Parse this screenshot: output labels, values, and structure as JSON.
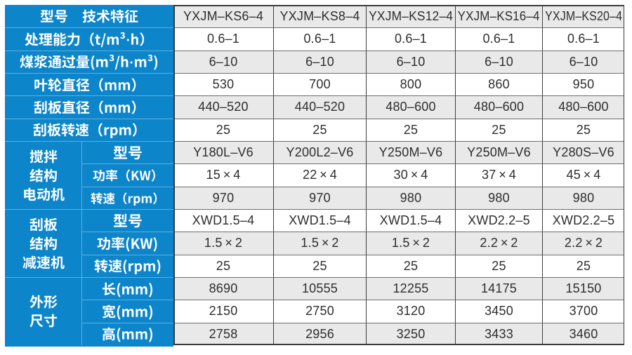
{
  "colors": {
    "header_blue": "#0c85ca",
    "blue_divider": "#5fb0de",
    "row_stripe_gray": "#e9e9e9",
    "row_white": "#ffffff",
    "grid_line_dark": "#3d3d3d",
    "grid_line_mid": "#6e6e6e",
    "text_dark": "#2e2e2e",
    "text_white": "#ffffff"
  },
  "table": {
    "corner_label": "型号　技术特征",
    "models": [
      "YXJM–KS6–4",
      "YXJM–KS8–4",
      "YXJM–KS12–4",
      "YXJM–KS16–4",
      "YXJM–KS20–4"
    ],
    "spec_rows": [
      {
        "label": "处理能力（t/m³·h）",
        "values": [
          "0.6–1",
          "0.6–1",
          "0.6–1",
          "0.6–1",
          "0.6–1"
        ]
      },
      {
        "label": "煤浆通过量(m³/h·m³)",
        "values": [
          "6–10",
          "6–10",
          "6–10",
          "6–10",
          "6–10"
        ]
      },
      {
        "label": "叶轮直径（mm）",
        "values": [
          "530",
          "700",
          "800",
          "860",
          "950"
        ]
      },
      {
        "label": "刮板直径（mm）",
        "values": [
          "440–520",
          "440–520",
          "480–600",
          "480–600",
          "480–600"
        ]
      },
      {
        "label": "刮板转速（rpm）",
        "values": [
          "25",
          "25",
          "25",
          "25",
          "25"
        ]
      }
    ],
    "groups": [
      {
        "label_lines": [
          "搅拌",
          "结构",
          "电动机"
        ],
        "rows": [
          {
            "label": "型号",
            "values": [
              "Y180L–V6",
              "Y200L2–V6",
              "Y250M–V6",
              "Y250M–V6",
              "Y280S–V6"
            ]
          },
          {
            "label": "功率（KW）",
            "values": [
              "15×4",
              "22×4",
              "30×4",
              "37×4",
              "45×4"
            ]
          },
          {
            "label": "转速（rpm）",
            "values": [
              "970",
              "970",
              "980",
              "980",
              "980"
            ]
          }
        ]
      },
      {
        "label_lines": [
          "刮板",
          "结构",
          "减速机"
        ],
        "rows": [
          {
            "label": "型号",
            "values": [
              "XWD1.5–4",
              "XWD1.5–4",
              "XWD1.5–4",
              "XWD2.2–5",
              "XWD2.2–5"
            ]
          },
          {
            "label": "功率(KW)",
            "values": [
              "1.5×2",
              "1.5×2",
              "1.5×2",
              "2.2×2",
              "2.2×2"
            ]
          },
          {
            "label": "转速(rpm)",
            "values": [
              "25",
              "25",
              "25",
              "25",
              "25"
            ]
          }
        ]
      },
      {
        "label_lines": [
          "外形",
          "尺寸"
        ],
        "rows": [
          {
            "label": "长(mm)",
            "values": [
              "8690",
              "10555",
              "12255",
              "14175",
              "15150"
            ]
          },
          {
            "label": "宽(mm)",
            "values": [
              "2150",
              "2750",
              "3120",
              "3450",
              "3700"
            ]
          },
          {
            "label": "高(mm)",
            "values": [
              "2758",
              "2956",
              "3250",
              "3433",
              "3460"
            ]
          }
        ]
      }
    ]
  },
  "chart_data": {
    "type": "table",
    "columns": [
      "YXJM-KS6-4",
      "YXJM-KS8-4",
      "YXJM-KS12-4",
      "YXJM-KS16-4",
      "YXJM-KS20-4"
    ],
    "rows": [
      {
        "parameter": "处理能力（t/m³·h）",
        "values": [
          "0.6-1",
          "0.6-1",
          "0.6-1",
          "0.6-1",
          "0.6-1"
        ]
      },
      {
        "parameter": "煤浆通过量(m³/h·m³)",
        "values": [
          "6-10",
          "6-10",
          "6-10",
          "6-10",
          "6-10"
        ]
      },
      {
        "parameter": "叶轮直径（mm）",
        "values": [
          530,
          700,
          800,
          860,
          950
        ]
      },
      {
        "parameter": "刮板直径（mm）",
        "values": [
          "440-520",
          "440-520",
          "480-600",
          "480-600",
          "480-600"
        ]
      },
      {
        "parameter": "刮板转速（rpm）",
        "values": [
          25,
          25,
          25,
          25,
          25
        ]
      },
      {
        "parameter": "搅拌结构电动机 型号",
        "values": [
          "Y180L-V6",
          "Y200L2-V6",
          "Y250M-V6",
          "Y250M-V6",
          "Y280S-V6"
        ]
      },
      {
        "parameter": "搅拌结构电动机 功率（KW）",
        "values": [
          "15×4",
          "22×4",
          "30×4",
          "37×4",
          "45×4"
        ]
      },
      {
        "parameter": "搅拌结构电动机 转速（rpm）",
        "values": [
          970,
          970,
          980,
          980,
          980
        ]
      },
      {
        "parameter": "刮板结构减速机 型号",
        "values": [
          "XWD1.5-4",
          "XWD1.5-4",
          "XWD1.5-4",
          "XWD2.2-5",
          "XWD2.2-5"
        ]
      },
      {
        "parameter": "刮板结构减速机 功率(KW)",
        "values": [
          "1.5×2",
          "1.5×2",
          "1.5×2",
          "2.2×2",
          "2.2×2"
        ]
      },
      {
        "parameter": "刮板结构减速机 转速(rpm)",
        "values": [
          25,
          25,
          25,
          25,
          25
        ]
      },
      {
        "parameter": "外形尺寸 长(mm)",
        "values": [
          8690,
          10555,
          12255,
          14175,
          15150
        ]
      },
      {
        "parameter": "外形尺寸 宽(mm)",
        "values": [
          2150,
          2750,
          3120,
          3450,
          3700
        ]
      },
      {
        "parameter": "外形尺寸 高(mm)",
        "values": [
          2758,
          2956,
          3250,
          3433,
          3460
        ]
      }
    ]
  }
}
